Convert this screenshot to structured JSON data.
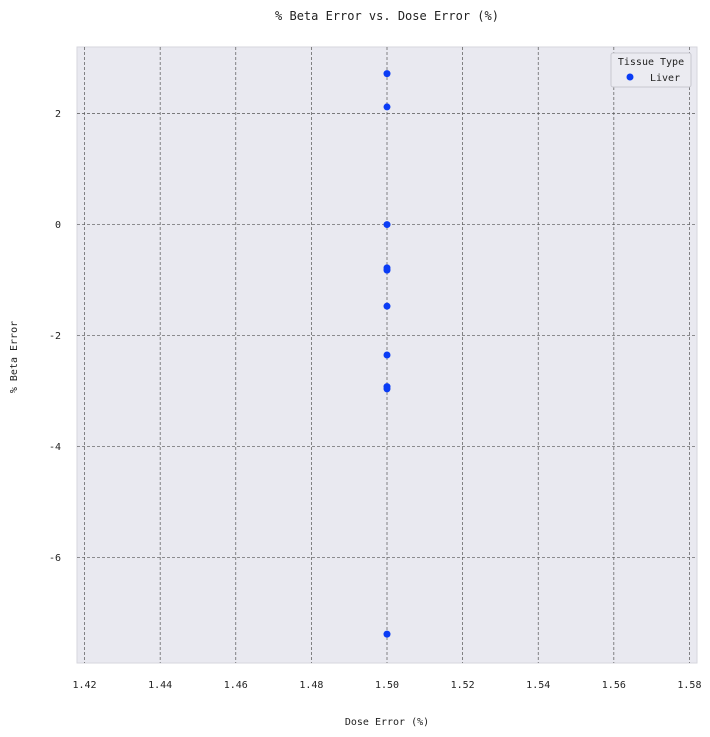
{
  "chart_data": {
    "type": "scatter",
    "title": "% Beta Error vs. Dose Error (%)",
    "xlabel": "Dose Error (%)",
    "ylabel": "% Beta Error",
    "xlim": [
      1.418,
      1.582
    ],
    "ylim": [
      -7.9,
      3.2
    ],
    "xticks": [
      1.42,
      1.44,
      1.46,
      1.48,
      1.5,
      1.52,
      1.54,
      1.56,
      1.58
    ],
    "xtick_labels": [
      "1.42",
      "1.44",
      "1.46",
      "1.48",
      "1.50",
      "1.52",
      "1.54",
      "1.56",
      "1.58"
    ],
    "yticks": [
      -6,
      -4,
      -2,
      0,
      2
    ],
    "ytick_labels": [
      "-6",
      "-4",
      "-2",
      "0",
      "2"
    ],
    "grid": true,
    "legend": {
      "title": "Tissue Type",
      "placement": "top-right",
      "entries": [
        "Liver"
      ]
    },
    "series": [
      {
        "name": "Liver",
        "color": "#0a3cf5",
        "x": [
          1.5,
          1.5,
          1.5,
          1.5,
          1.5,
          1.5,
          1.5,
          1.5,
          1.5,
          1.5
        ],
        "y": [
          2.72,
          2.12,
          0.0,
          -0.78,
          -0.82,
          -1.47,
          -2.35,
          -2.92,
          -2.96,
          -7.38
        ]
      }
    ]
  }
}
